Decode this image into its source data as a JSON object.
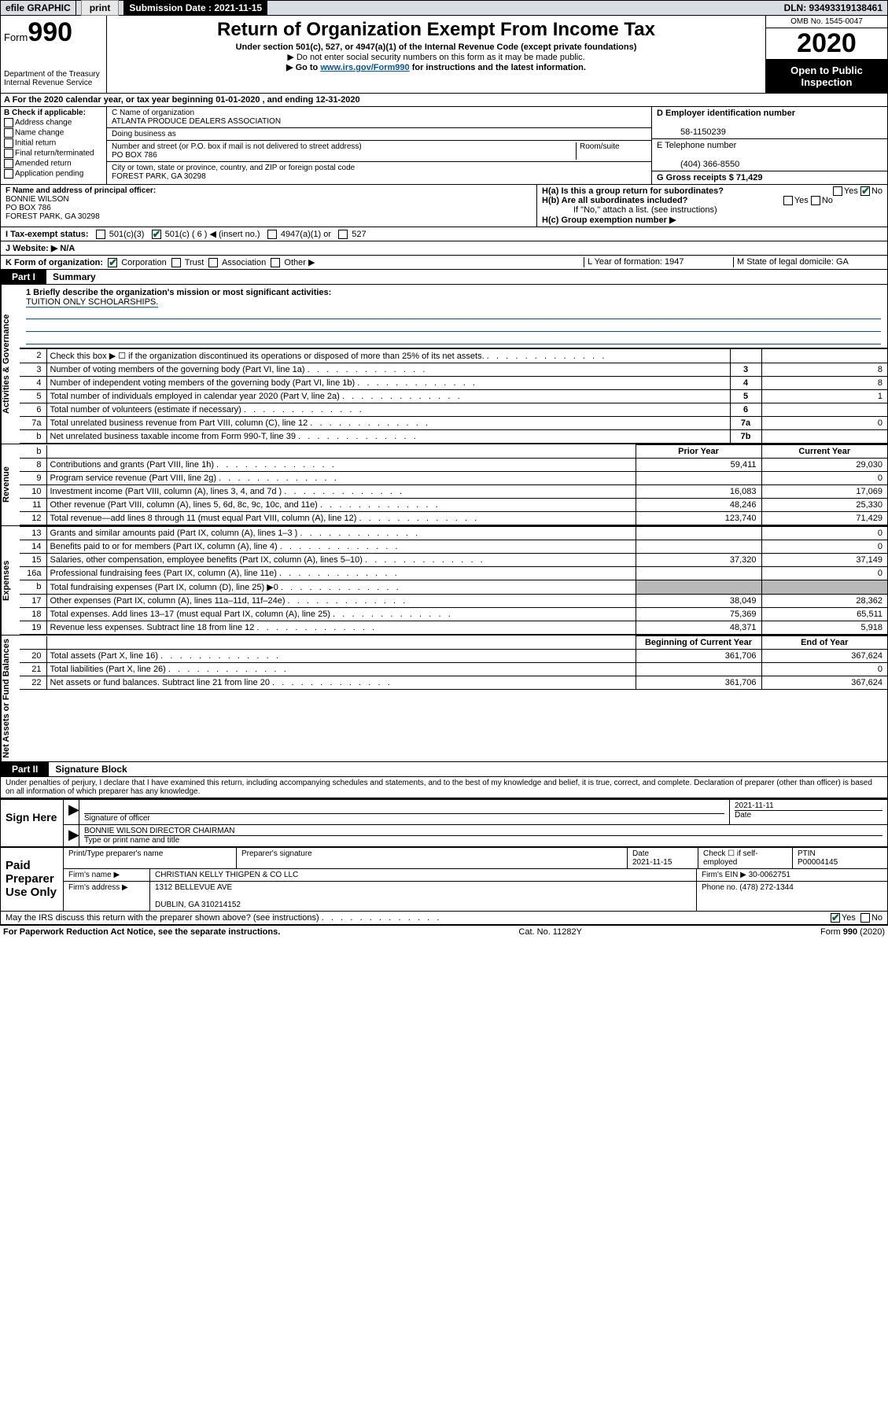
{
  "topbar": {
    "efile": "efile GRAPHIC",
    "print": "print",
    "submission_label": "Submission Date : 2021-11-15",
    "dln": "DLN: 93493319138461"
  },
  "header": {
    "form_prefix": "Form",
    "form_number": "990",
    "dept": "Department of the Treasury\nInternal Revenue Service",
    "title": "Return of Organization Exempt From Income Tax",
    "subtitle": "Under section 501(c), 527, or 4947(a)(1) of the Internal Revenue Code (except private foundations)",
    "note1": "▶ Do not enter social security numbers on this form as it may be made public.",
    "note2_pre": "▶ Go to ",
    "note2_link": "www.irs.gov/Form990",
    "note2_post": " for instructions and the latest information.",
    "omb": "OMB No. 1545-0047",
    "year": "2020",
    "open": "Open to Public Inspection"
  },
  "row_a": "A For the 2020 calendar year, or tax year beginning 01-01-2020   , and ending 12-31-2020",
  "section_b": {
    "label": "B Check if applicable:",
    "opts": [
      "Address change",
      "Name change",
      "Initial return",
      "Final return/terminated",
      "Amended return",
      "Application pending"
    ]
  },
  "section_c": {
    "name_label": "C Name of organization",
    "name": "ATLANTA PRODUCE DEALERS ASSOCIATION",
    "dba_label": "Doing business as",
    "street_label": "Number and street (or P.O. box if mail is not delivered to street address)",
    "room_label": "Room/suite",
    "street": "PO BOX 786",
    "city_label": "City or town, state or province, country, and ZIP or foreign postal code",
    "city": "FOREST PARK, GA  30298"
  },
  "section_d": {
    "ein_label": "D Employer identification number",
    "ein": "58-1150239",
    "phone_label": "E Telephone number",
    "phone": "(404) 366-8550",
    "gross_label": "G Gross receipts $ 71,429"
  },
  "section_f": {
    "label": "F Name and address of principal officer:",
    "name": "BONNIE WILSON",
    "street": "PO BOX 786",
    "city": "FOREST PARK, GA  30298"
  },
  "section_h": {
    "a": "H(a)  Is this a group return for subordinates?",
    "b": "H(b)  Are all subordinates included?",
    "b_note": "If \"No,\" attach a list. (see instructions)",
    "c": "H(c)  Group exemption number ▶"
  },
  "row_i": {
    "label": "I  Tax-exempt status:",
    "c6_num": "501(c) ( 6 ) ◀ (insert no.)"
  },
  "row_j": "J  Website: ▶  N/A",
  "row_k": {
    "label": "K Form of organization:",
    "opts": [
      "Corporation",
      "Trust",
      "Association",
      "Other ▶"
    ],
    "l": "L Year of formation: 1947",
    "m": "M State of legal domicile: GA"
  },
  "part1": {
    "tab": "Part I",
    "title": "Summary",
    "line1_label": "1  Briefly describe the organization's mission or most significant activities:",
    "line1_text": "TUITION ONLY SCHOLARSHIPS.",
    "gov_label": "Activities & Governance",
    "rev_label": "Revenue",
    "exp_label": "Expenses",
    "net_label": "Net Assets or Fund Balances",
    "gov_rows": [
      {
        "n": "2",
        "desc": "Check this box ▶ ☐  if the organization discontinued its operations or disposed of more than 25% of its net assets.",
        "box": "",
        "val": ""
      },
      {
        "n": "3",
        "desc": "Number of voting members of the governing body (Part VI, line 1a)",
        "box": "3",
        "val": "8"
      },
      {
        "n": "4",
        "desc": "Number of independent voting members of the governing body (Part VI, line 1b)",
        "box": "4",
        "val": "8"
      },
      {
        "n": "5",
        "desc": "Total number of individuals employed in calendar year 2020 (Part V, line 2a)",
        "box": "5",
        "val": "1"
      },
      {
        "n": "6",
        "desc": "Total number of volunteers (estimate if necessary)",
        "box": "6",
        "val": ""
      },
      {
        "n": "7a",
        "desc": "Total unrelated business revenue from Part VIII, column (C), line 12",
        "box": "7a",
        "val": "0"
      },
      {
        "n": "b",
        "desc": "Net unrelated business taxable income from Form 990-T, line 39",
        "box": "7b",
        "val": ""
      }
    ],
    "prior_hdr": "Prior Year",
    "curr_hdr": "Current Year",
    "rev_rows": [
      {
        "n": "8",
        "desc": "Contributions and grants (Part VIII, line 1h)",
        "prior": "59,411",
        "curr": "29,030"
      },
      {
        "n": "9",
        "desc": "Program service revenue (Part VIII, line 2g)",
        "prior": "",
        "curr": "0"
      },
      {
        "n": "10",
        "desc": "Investment income (Part VIII, column (A), lines 3, 4, and 7d )",
        "prior": "16,083",
        "curr": "17,069"
      },
      {
        "n": "11",
        "desc": "Other revenue (Part VIII, column (A), lines 5, 6d, 8c, 9c, 10c, and 11e)",
        "prior": "48,246",
        "curr": "25,330"
      },
      {
        "n": "12",
        "desc": "Total revenue—add lines 8 through 11 (must equal Part VIII, column (A), line 12)",
        "prior": "123,740",
        "curr": "71,429"
      }
    ],
    "exp_rows": [
      {
        "n": "13",
        "desc": "Grants and similar amounts paid (Part IX, column (A), lines 1–3 )",
        "prior": "",
        "curr": "0"
      },
      {
        "n": "14",
        "desc": "Benefits paid to or for members (Part IX, column (A), line 4)",
        "prior": "",
        "curr": "0"
      },
      {
        "n": "15",
        "desc": "Salaries, other compensation, employee benefits (Part IX, column (A), lines 5–10)",
        "prior": "37,320",
        "curr": "37,149"
      },
      {
        "n": "16a",
        "desc": "Professional fundraising fees (Part IX, column (A), line 11e)",
        "prior": "",
        "curr": "0"
      },
      {
        "n": "b",
        "desc": "Total fundraising expenses (Part IX, column (D), line 25) ▶0",
        "prior": "SHADE",
        "curr": "SHADE"
      },
      {
        "n": "17",
        "desc": "Other expenses (Part IX, column (A), lines 11a–11d, 11f–24e)",
        "prior": "38,049",
        "curr": "28,362"
      },
      {
        "n": "18",
        "desc": "Total expenses. Add lines 13–17 (must equal Part IX, column (A), line 25)",
        "prior": "75,369",
        "curr": "65,511"
      },
      {
        "n": "19",
        "desc": "Revenue less expenses. Subtract line 18 from line 12",
        "prior": "48,371",
        "curr": "5,918"
      }
    ],
    "net_hdr_prior": "Beginning of Current Year",
    "net_hdr_curr": "End of Year",
    "net_rows": [
      {
        "n": "20",
        "desc": "Total assets (Part X, line 16)",
        "prior": "361,706",
        "curr": "367,624"
      },
      {
        "n": "21",
        "desc": "Total liabilities (Part X, line 26)",
        "prior": "",
        "curr": "0"
      },
      {
        "n": "22",
        "desc": "Net assets or fund balances. Subtract line 21 from line 20",
        "prior": "361,706",
        "curr": "367,624"
      }
    ]
  },
  "part2": {
    "tab": "Part II",
    "title": "Signature Block",
    "penalty": "Under penalties of perjury, I declare that I have examined this return, including accompanying schedules and statements, and to the best of my knowledge and belief, it is true, correct, and complete. Declaration of preparer (other than officer) is based on all information of which preparer has any knowledge.",
    "sign_here": "Sign Here",
    "sig_officer": "Signature of officer",
    "sig_date": "2021-11-11",
    "date_lbl": "Date",
    "officer_name": "BONNIE WILSON  DIRECTOR CHAIRMAN",
    "officer_type": "Type or print name and title",
    "paid": "Paid Preparer Use Only",
    "prep_name_lbl": "Print/Type preparer's name",
    "prep_sig_lbl": "Preparer's signature",
    "prep_date_lbl": "Date",
    "prep_date": "2021-11-15",
    "self_emp": "Check ☐ if self-employed",
    "ptin_lbl": "PTIN",
    "ptin": "P00004145",
    "firm_name_lbl": "Firm's name    ▶",
    "firm_name": "CHRISTIAN KELLY THIGPEN & CO LLC",
    "firm_ein_lbl": "Firm's EIN ▶",
    "firm_ein": "30-0062751",
    "firm_addr_lbl": "Firm's address ▶",
    "firm_addr1": "1312 BELLEVUE AVE",
    "firm_addr2": "DUBLIN, GA  310214152",
    "firm_phone_lbl": "Phone no.",
    "firm_phone": "(478) 272-1344",
    "discuss": "May the IRS discuss this return with the preparer shown above? (see instructions)"
  },
  "footer": {
    "pra": "For Paperwork Reduction Act Notice, see the separate instructions.",
    "cat": "Cat. No. 11282Y",
    "form": "Form 990 (2020)"
  }
}
